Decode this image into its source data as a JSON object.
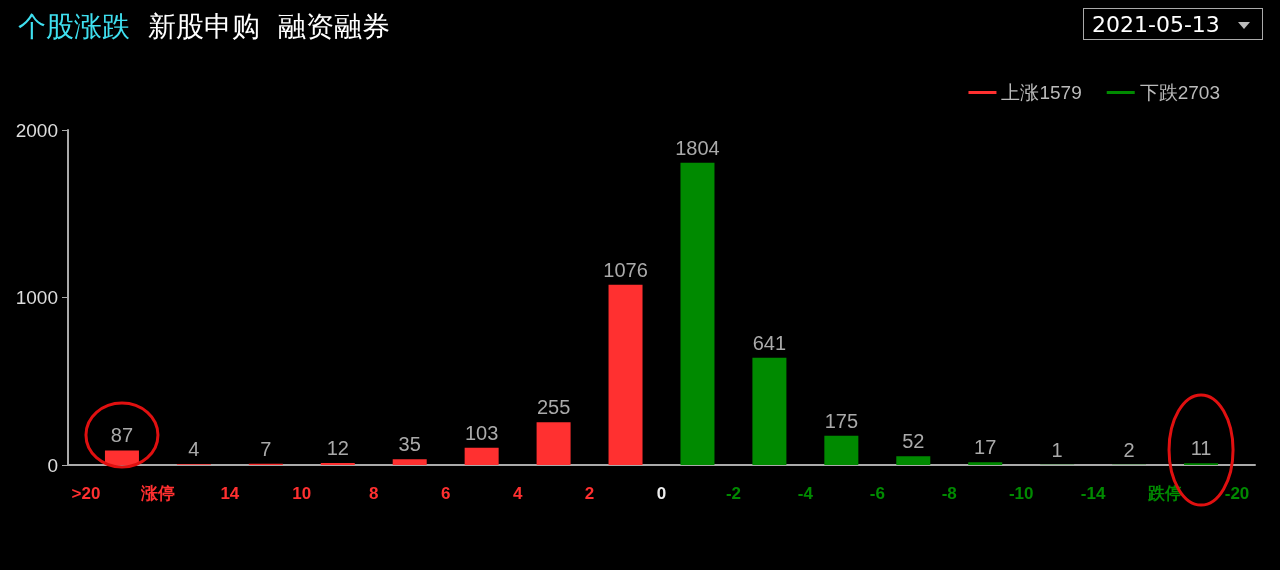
{
  "chart_data": {
    "type": "bar",
    "title": "个股涨跌",
    "subtitle": "新股申购  融资融券",
    "annotations": [
      "2021-05-13"
    ],
    "categories": [
      ">20",
      null,
      "涨停",
      null,
      "14",
      null,
      "10",
      null,
      "8",
      null,
      "6",
      null,
      "4",
      null,
      "2",
      null,
      "0",
      null,
      "-2",
      null,
      "-4",
      null,
      "-6",
      null,
      "-8",
      null,
      "-10",
      null,
      "-14",
      null,
      "跌停",
      null,
      "-20"
    ],
    "series": [
      {
        "name": "上涨1579",
        "color": "#ff3030",
        "values": [
          null,
          87,
          null,
          4,
          null,
          7,
          null,
          12,
          null,
          35,
          null,
          103,
          null,
          255,
          null,
          1076,
          null,
          null,
          null,
          null,
          null,
          null,
          null,
          null,
          null,
          null,
          null,
          null,
          null,
          null,
          null,
          null,
          null
        ]
      },
      {
        "name": "下跌2703",
        "color": "#008a00",
        "values": [
          null,
          null,
          null,
          null,
          null,
          null,
          null,
          null,
          null,
          null,
          null,
          null,
          null,
          null,
          null,
          null,
          null,
          1804,
          null,
          641,
          null,
          175,
          null,
          52,
          null,
          17,
          null,
          1,
          null,
          2,
          null,
          11,
          null
        ]
      }
    ],
    "ylim": [
      0,
      2000
    ],
    "yticks": [
      0,
      1000,
      2000
    ],
    "data_labels": true,
    "grid": false,
    "legend": "top right"
  }
}
